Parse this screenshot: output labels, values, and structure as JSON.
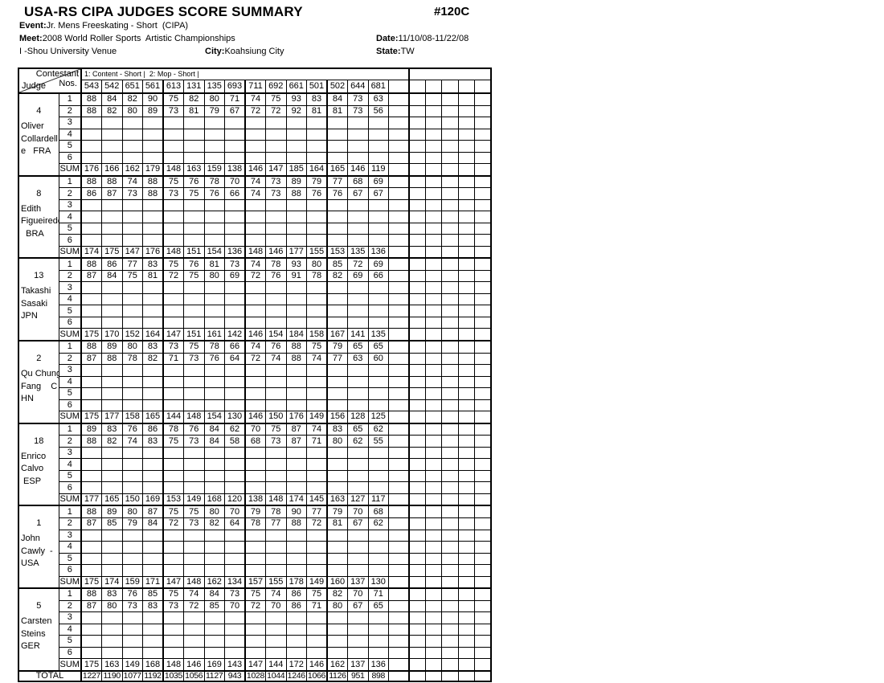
{
  "header": {
    "title": "USA-RS CIPA JUDGES SCORE SUMMARY",
    "doc_number": "#120C",
    "event_label": "Event:",
    "event": "Jr. Mens Freeskating - Short  (CIPA)",
    "meet_label": "Meet:",
    "meet": "2008 World Roller Sports  Artistic Championships",
    "date_label": "Date:",
    "date": "11/10/08-11/22/08",
    "venue": "I -Shou University Venue",
    "city_label": "City:",
    "city": "Koahsiung City",
    "state_label": "State:",
    "state": "TW"
  },
  "table": {
    "corner": {
      "contestant": "Contestant",
      "nos": "Nos.",
      "judge": "Judge"
    },
    "program_header": "1: Content - Short |  2: Mop - Short |",
    "contestant_nos": [
      "543",
      "542",
      "651",
      "561",
      "613",
      "131",
      "135",
      "693",
      "711",
      "692",
      "661",
      "501",
      "502",
      "644",
      "681"
    ],
    "row_labels": [
      "1",
      "2",
      "3",
      "4",
      "5",
      "6"
    ],
    "sum_label": "SUM",
    "total_label": "TOTAL",
    "judges": [
      {
        "number": "4",
        "name": "Oliver\nCollardell\ne   FRA",
        "rows": [
          [
            "88",
            "84",
            "82",
            "90",
            "75",
            "82",
            "80",
            "71",
            "74",
            "75",
            "93",
            "83",
            "84",
            "73",
            "63"
          ],
          [
            "88",
            "82",
            "80",
            "89",
            "73",
            "81",
            "79",
            "67",
            "72",
            "72",
            "92",
            "81",
            "81",
            "73",
            "56"
          ],
          [],
          [],
          [],
          []
        ],
        "sum": [
          "176",
          "166",
          "162",
          "179",
          "148",
          "163",
          "159",
          "138",
          "146",
          "147",
          "185",
          "164",
          "165",
          "146",
          "119"
        ]
      },
      {
        "number": "8",
        "name": "Edith\nFigueiredo\n  BRA",
        "rows": [
          [
            "88",
            "88",
            "74",
            "88",
            "75",
            "76",
            "78",
            "70",
            "74",
            "73",
            "89",
            "79",
            "77",
            "68",
            "69"
          ],
          [
            "86",
            "87",
            "73",
            "88",
            "73",
            "75",
            "76",
            "66",
            "74",
            "73",
            "88",
            "76",
            "76",
            "67",
            "67"
          ],
          [],
          [],
          [],
          []
        ],
        "sum": [
          "174",
          "175",
          "147",
          "176",
          "148",
          "151",
          "154",
          "136",
          "148",
          "146",
          "177",
          "155",
          "153",
          "135",
          "136"
        ]
      },
      {
        "number": "13",
        "name": "Takashi\nSasaki\nJPN",
        "rows": [
          [
            "88",
            "86",
            "77",
            "83",
            "75",
            "76",
            "81",
            "73",
            "74",
            "78",
            "93",
            "80",
            "85",
            "72",
            "69"
          ],
          [
            "87",
            "84",
            "75",
            "81",
            "72",
            "75",
            "80",
            "69",
            "72",
            "76",
            "91",
            "78",
            "82",
            "69",
            "66"
          ],
          [],
          [],
          [],
          []
        ],
        "sum": [
          "175",
          "170",
          "152",
          "164",
          "147",
          "151",
          "161",
          "142",
          "146",
          "154",
          "184",
          "158",
          "167",
          "141",
          "135"
        ]
      },
      {
        "number": "2",
        "name": "Qu Chung\nFang    C\nHN",
        "rows": [
          [
            "88",
            "89",
            "80",
            "83",
            "73",
            "75",
            "78",
            "66",
            "74",
            "76",
            "88",
            "75",
            "79",
            "65",
            "65"
          ],
          [
            "87",
            "88",
            "78",
            "82",
            "71",
            "73",
            "76",
            "64",
            "72",
            "74",
            "88",
            "74",
            "77",
            "63",
            "60"
          ],
          [],
          [],
          [],
          []
        ],
        "sum": [
          "175",
          "177",
          "158",
          "165",
          "144",
          "148",
          "154",
          "130",
          "146",
          "150",
          "176",
          "149",
          "156",
          "128",
          "125"
        ]
      },
      {
        "number": "18",
        "name": "Enrico\nCalvo\n ESP",
        "rows": [
          [
            "89",
            "83",
            "76",
            "86",
            "78",
            "76",
            "84",
            "62",
            "70",
            "75",
            "87",
            "74",
            "83",
            "65",
            "62"
          ],
          [
            "88",
            "82",
            "74",
            "83",
            "75",
            "73",
            "84",
            "58",
            "68",
            "73",
            "87",
            "71",
            "80",
            "62",
            "55"
          ],
          [],
          [],
          [],
          []
        ],
        "sum": [
          "177",
          "165",
          "150",
          "169",
          "153",
          "149",
          "168",
          "120",
          "138",
          "148",
          "174",
          "145",
          "163",
          "127",
          "117"
        ]
      },
      {
        "number": "1",
        "name": "John\nCawly  -\nUSA",
        "rows": [
          [
            "88",
            "89",
            "80",
            "87",
            "75",
            "75",
            "80",
            "70",
            "79",
            "78",
            "90",
            "77",
            "79",
            "70",
            "68"
          ],
          [
            "87",
            "85",
            "79",
            "84",
            "72",
            "73",
            "82",
            "64",
            "78",
            "77",
            "88",
            "72",
            "81",
            "67",
            "62"
          ],
          [],
          [],
          [],
          []
        ],
        "sum": [
          "175",
          "174",
          "159",
          "171",
          "147",
          "148",
          "162",
          "134",
          "157",
          "155",
          "178",
          "149",
          "160",
          "137",
          "130"
        ]
      },
      {
        "number": "5",
        "name": "Carsten\nSteins\nGER",
        "rows": [
          [
            "88",
            "83",
            "76",
            "85",
            "75",
            "74",
            "84",
            "73",
            "75",
            "74",
            "86",
            "75",
            "82",
            "70",
            "71"
          ],
          [
            "87",
            "80",
            "73",
            "83",
            "73",
            "72",
            "85",
            "70",
            "72",
            "70",
            "86",
            "71",
            "80",
            "67",
            "65"
          ],
          [],
          [],
          [],
          []
        ],
        "sum": [
          "175",
          "163",
          "149",
          "168",
          "148",
          "146",
          "169",
          "143",
          "147",
          "144",
          "172",
          "146",
          "162",
          "137",
          "136"
        ]
      }
    ],
    "total": [
      "1227",
      "1190",
      "1077",
      "1192",
      "1035",
      "1056",
      "1127",
      "943",
      "1028",
      "1044",
      "1246",
      "1066",
      "1126",
      "951",
      "898"
    ]
  }
}
